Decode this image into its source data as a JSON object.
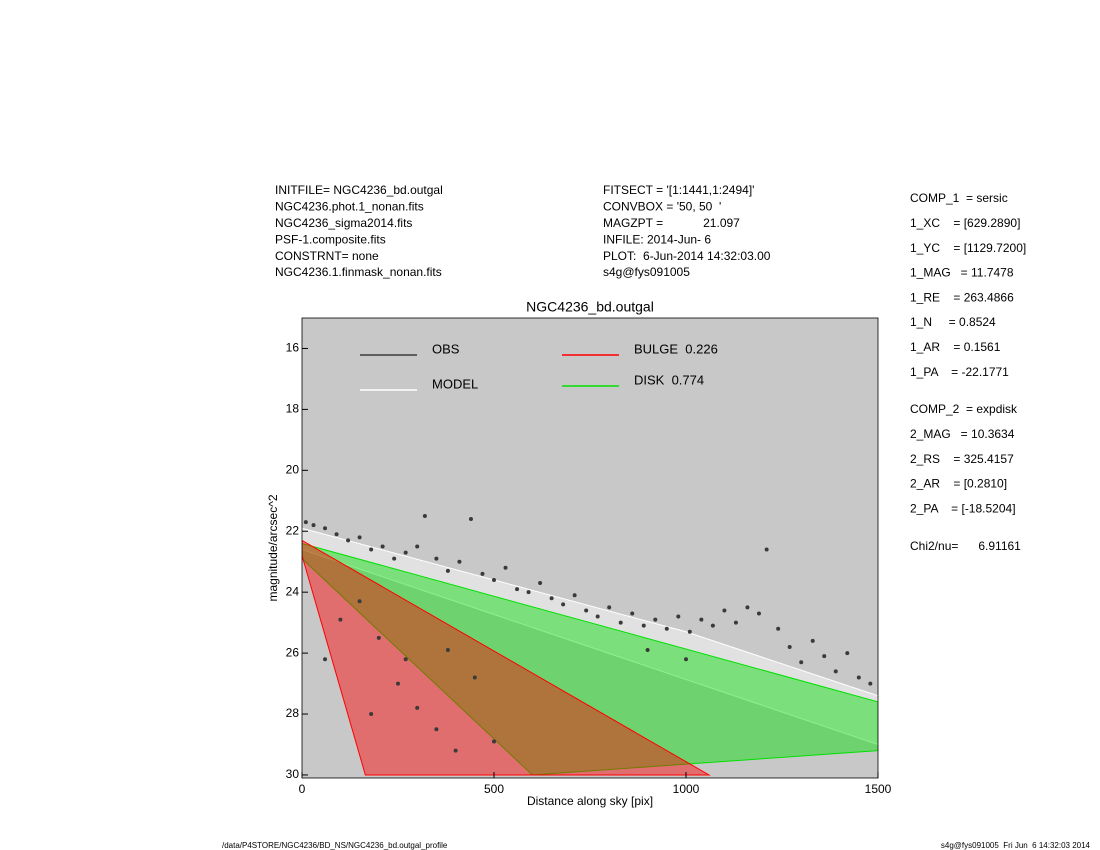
{
  "chart_data": {
    "type": "scatter",
    "title": "NGC4236_bd.outgal",
    "x_label": "Distance along sky [pix]",
    "y_label": "magnitude/arcsec^2",
    "xlim": [
      0,
      1500
    ],
    "xticks": [
      0,
      500,
      1000,
      1500
    ],
    "ylim": [
      30.1,
      15
    ],
    "yticks": [
      16,
      18,
      20,
      22,
      24,
      26,
      28,
      30
    ],
    "background": "#c8c8c8",
    "series": [
      {
        "name": "OBS",
        "color": "#3a3a3a",
        "kind": "points",
        "x": [
          10,
          30,
          60,
          90,
          120,
          150,
          180,
          210,
          240,
          270,
          300,
          320,
          350,
          380,
          410,
          440,
          470,
          500,
          530,
          560,
          590,
          620,
          650,
          680,
          710,
          740,
          770,
          800,
          830,
          860,
          890,
          920,
          950,
          980,
          1010,
          1040,
          1070,
          1100,
          1130,
          1160,
          1190,
          1210,
          1240,
          1270,
          1300,
          1330,
          1360,
          1390,
          1420,
          1450,
          1480,
          60,
          200,
          250,
          300,
          350,
          400,
          180,
          450,
          380,
          500,
          150,
          100,
          270,
          1000,
          900
        ],
        "values": [
          21.7,
          21.8,
          21.9,
          22.1,
          22.3,
          22.2,
          22.6,
          22.5,
          22.9,
          22.7,
          22.5,
          21.5,
          22.9,
          23.3,
          23.0,
          21.6,
          23.4,
          23.6,
          23.2,
          23.9,
          24.0,
          23.7,
          24.2,
          24.4,
          24.1,
          24.6,
          24.8,
          24.5,
          25.0,
          24.7,
          25.1,
          24.9,
          25.2,
          24.8,
          25.3,
          24.9,
          25.1,
          24.6,
          25.0,
          24.5,
          24.7,
          22.6,
          25.2,
          25.8,
          26.3,
          25.6,
          26.1,
          26.6,
          26.0,
          26.8,
          27.0,
          26.2,
          25.5,
          27.0,
          27.8,
          28.5,
          29.2,
          28.0,
          26.8,
          25.9,
          28.9,
          24.3,
          24.9,
          26.2,
          26.2,
          25.9
        ]
      },
      {
        "name": "MODEL",
        "color": "#ffffff",
        "kind": "region",
        "x": [
          0,
          1000,
          1500,
          1500,
          0
        ],
        "values": [
          21.9,
          25.3,
          27.4,
          29.0,
          22.6
        ]
      },
      {
        "name": "DISK  0.774",
        "color": "#00e000",
        "kind": "region",
        "x": [
          0,
          1500,
          1500,
          600,
          0
        ],
        "values": [
          22.4,
          27.6,
          29.2,
          30,
          22.9
        ]
      },
      {
        "name": "BULGE  0.226",
        "color": "#ff0000",
        "kind": "region",
        "x": [
          0,
          1060,
          165,
          0
        ],
        "values": [
          22.3,
          30,
          30,
          22.8
        ]
      }
    ]
  },
  "info_left": [
    "INITFILE= NGC4236_bd.outgal",
    "NGC4236.phot.1_nonan.fits",
    "NGC4236_sigma2014.fits",
    "PSF-1.composite.fits",
    "CONSTRNT= none",
    "NGC4236.1.finmask_nonan.fits"
  ],
  "info_mid": [
    "FITSECT = '[1:1441,1:2494]'",
    "CONVBOX = '50, 50  '",
    "MAGZPT =            21.097",
    "INFILE: 2014-Jun- 6",
    "PLOT:  6-Jun-2014 14:32:03.00",
    "s4g@fys091005"
  ],
  "params_comp1": [
    "COMP_1  = sersic",
    "1_XC    = [629.2890]",
    "1_YC    = [1129.7200]",
    "1_MAG   = 11.7478",
    "1_RE    = 263.4866",
    "1_N     = 0.8524",
    "1_AR    = 0.1561",
    "1_PA    = -22.1771"
  ],
  "params_comp2": [
    "COMP_2  = expdisk",
    "2_MAG   = 10.3634",
    "2_RS    = 325.4157",
    "2_AR    = [0.2810]",
    "2_PA    = [-18.5204]"
  ],
  "chi2": "Chi2/nu=      6.91161",
  "footer_left": "/data/P4STORE/NGC4236/BD_NS/NGC4236_bd.outgal_profile",
  "footer_right": "s4g@fys091005  Fri Jun  6 14:32:03 2014"
}
